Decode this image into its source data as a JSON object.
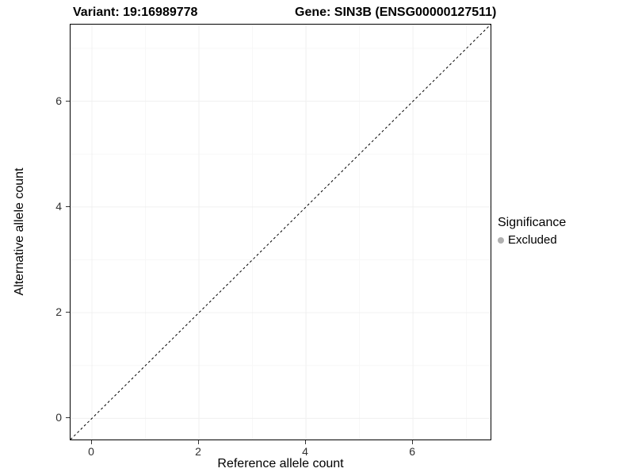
{
  "chart_data": {
    "type": "scatter",
    "title_left": "Variant: 19:16989778",
    "title_right": "Gene: SIN3B (ENSG00000127511)",
    "xlabel": "Reference allele count",
    "ylabel": "Alternative allele count",
    "xlim": [
      -0.4,
      7.45
    ],
    "ylim": [
      -0.4,
      7.45
    ],
    "xticks": [
      0,
      2,
      4,
      6
    ],
    "yticks": [
      0,
      2,
      4,
      6
    ],
    "xticks_minor": [
      1,
      3,
      5,
      7
    ],
    "yticks_minor": [
      1,
      3,
      5,
      7
    ],
    "grid": "on",
    "points": [],
    "identity_line": {
      "style": "dashed",
      "color": "#000000",
      "from": [
        -0.4,
        -0.4
      ],
      "to": [
        7.45,
        7.45
      ]
    },
    "legend": {
      "title": "Significance",
      "position": "right",
      "entries": [
        {
          "label": "Excluded",
          "color": "#b0b0b0",
          "marker": "point"
        }
      ]
    },
    "colors": {
      "panel_border": "#000000",
      "panel_background": "#ffffff",
      "grid_major": "#f0f0f0",
      "grid_minor": "#f7f7f7",
      "tick_text": "#303030"
    }
  }
}
